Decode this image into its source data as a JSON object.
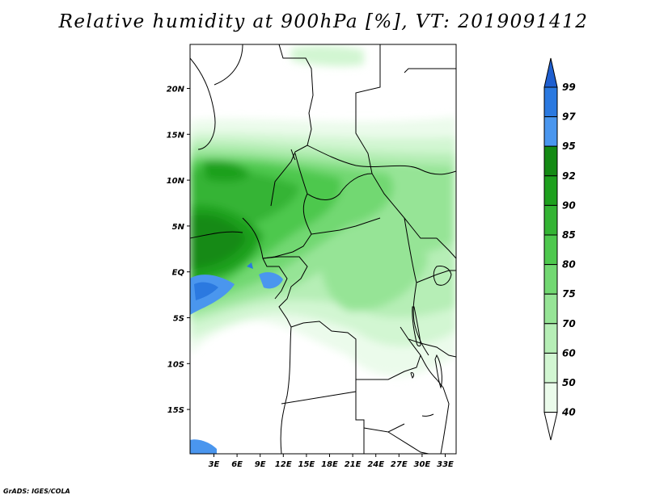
{
  "title": "Relative humidity at 900hPa [%], VT: 2019091412",
  "footer": "GrADS: IGES/COLA",
  "map": {
    "lat_labels": [
      "20N",
      "15N",
      "10N",
      "5N",
      "EQ",
      "5S",
      "10S",
      "15S"
    ],
    "lon_labels": [
      "3E",
      "6E",
      "9E",
      "12E",
      "15E",
      "18E",
      "21E",
      "24E",
      "27E",
      "30E",
      "33E"
    ]
  },
  "colorbar": {
    "levels": [
      "99",
      "97",
      "95",
      "92",
      "90",
      "85",
      "80",
      "75",
      "70",
      "60",
      "50",
      "40"
    ],
    "colors": [
      "#1f5fd0",
      "#2b79e0",
      "#4a96ee",
      "#148a14",
      "#1ea01e",
      "#34b434",
      "#4ec84e",
      "#72d872",
      "#96e496",
      "#b6eeb6",
      "#d2f6d2",
      "#ebfbeb",
      "#ffffff"
    ]
  }
}
